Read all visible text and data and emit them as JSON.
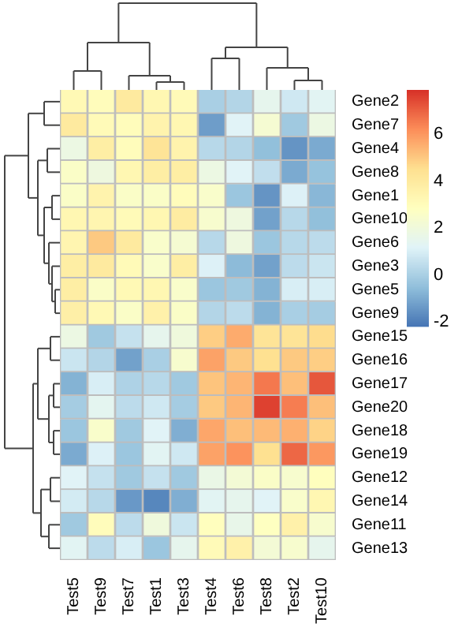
{
  "chart_data": {
    "type": "heatmap",
    "categories": [
      "Test5",
      "Test9",
      "Test7",
      "Test1",
      "Test3",
      "Test4",
      "Test6",
      "Test8",
      "Test2",
      "Test10"
    ],
    "y_categories": [
      "Gene2",
      "Gene7",
      "Gene4",
      "Gene8",
      "Gene1",
      "Gene10",
      "Gene6",
      "Gene3",
      "Gene5",
      "Gene9",
      "Gene15",
      "Gene16",
      "Gene17",
      "Gene20",
      "Gene18",
      "Gene19",
      "Gene12",
      "Gene14",
      "Gene11",
      "Gene13"
    ],
    "cells": [
      [
        3.2,
        3,
        4,
        3.3,
        3.1,
        0,
        0.2,
        1.5,
        0.8,
        1.3
      ],
      [
        4,
        3.1,
        3,
        3.5,
        3.3,
        -1.3,
        1.2,
        2.3,
        -0.2,
        1.8
      ],
      [
        1.8,
        3.8,
        3,
        4.3,
        3.5,
        0.3,
        0.2,
        -0.5,
        -1.5,
        -1
      ],
      [
        2.6,
        1.9,
        3.3,
        3.8,
        3.8,
        1.8,
        1.2,
        0.5,
        -1,
        -0.4
      ],
      [
        2.6,
        3.5,
        2.6,
        2.6,
        3,
        2.5,
        -0.3,
        -1.5,
        1.1,
        -0.7
      ],
      [
        3.3,
        3.4,
        3.1,
        3.3,
        3.9,
        2.4,
        1.9,
        -1.2,
        0.3,
        -0.5
      ],
      [
        3.4,
        5,
        4,
        2.5,
        2.3,
        0.3,
        1.9,
        -0.3,
        0.3,
        0.4
      ],
      [
        3.8,
        4,
        3.1,
        2.5,
        3.8,
        1.1,
        -0.6,
        -1.2,
        0.4,
        0.7
      ],
      [
        3.8,
        2.6,
        3.2,
        3.3,
        2.5,
        -0.3,
        -0.2,
        -0.8,
        1,
        1
      ],
      [
        3.7,
        3.2,
        2.6,
        3.6,
        2.6,
        0.2,
        0.4,
        -0.8,
        0,
        -0.1
      ],
      [
        1.8,
        -0.2,
        0.6,
        1.5,
        2,
        4.9,
        5.6,
        4.3,
        4.3,
        4.6
      ],
      [
        0.7,
        0.2,
        -1.2,
        0,
        2.4,
        5.8,
        5,
        4.5,
        5,
        4.9
      ],
      [
        -0.8,
        1,
        0.1,
        0.3,
        -0.2,
        5.1,
        5.4,
        6.6,
        5.2,
        7.2
      ],
      [
        -0.1,
        1.4,
        0.4,
        0.8,
        -0.1,
        5,
        5.4,
        7.6,
        6.5,
        5.2
      ],
      [
        -0.3,
        2.5,
        -0.2,
        1.2,
        -0.9,
        5.7,
        5.2,
        5.3,
        5.5,
        4.8
      ],
      [
        -1,
        1.1,
        -0.3,
        1.3,
        0.8,
        5.8,
        6.1,
        4.5,
        6.9,
        6
      ],
      [
        1.2,
        0.6,
        -0.2,
        0.6,
        -0.2,
        1.7,
        2.2,
        2.6,
        2.4,
        2.9
      ],
      [
        0.9,
        0.3,
        -1.4,
        -1.8,
        -0.9,
        1.3,
        1.5,
        1.2,
        2.5,
        3.3
      ],
      [
        -0.2,
        3,
        0.4,
        2,
        0.7,
        2.9,
        1.6,
        2.8,
        3.6,
        2.4
      ],
      [
        1.3,
        0.4,
        1,
        -0.3,
        1.5,
        3.1,
        3.6,
        2.2,
        2.4,
        1.5
      ]
    ],
    "clim": [
      -2.2,
      7.9
    ],
    "cticks": [
      -2,
      0,
      2,
      4,
      6
    ]
  }
}
